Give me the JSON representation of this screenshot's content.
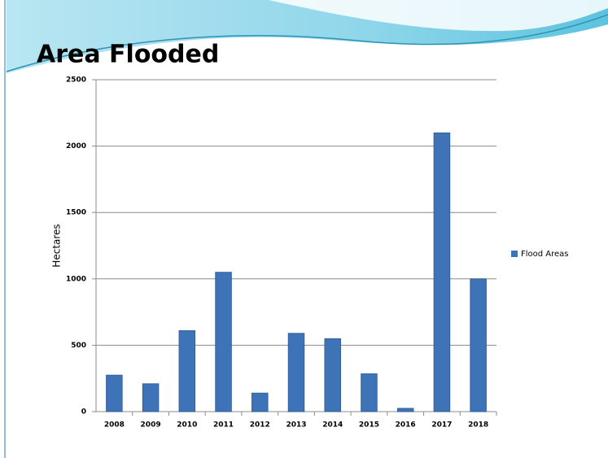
{
  "chart_data": {
    "type": "bar",
    "title": "Area Flooded",
    "y_label": "Hectares",
    "categories": [
      "2008",
      "2009",
      "2010",
      "2011",
      "2012",
      "2013",
      "2014",
      "2015",
      "2016",
      "2017",
      "2018"
    ],
    "series": [
      {
        "name": "Flood Areas",
        "color": "#3f73b8",
        "values": [
          275,
          210,
          610,
          1050,
          140,
          590,
          550,
          285,
          25,
          2100,
          1000
        ]
      }
    ],
    "ylim": [
      0,
      2500
    ],
    "yticks": [
      0,
      500,
      1000,
      1500,
      2000,
      2500
    ],
    "grid": true,
    "legend": "right"
  }
}
